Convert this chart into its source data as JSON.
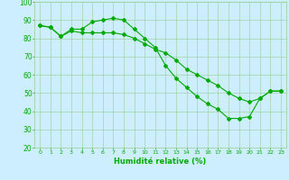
{
  "line1_x": [
    0,
    1,
    2,
    3,
    4,
    5,
    6,
    7,
    8,
    9,
    10,
    11,
    12,
    13,
    14,
    15,
    16,
    17,
    18,
    19,
    20,
    21,
    22,
    23
  ],
  "line1_y": [
    87,
    86,
    81,
    85,
    85,
    89,
    90,
    91,
    90,
    85,
    80,
    75,
    65,
    58,
    53,
    48,
    44,
    41,
    36,
    36,
    37,
    47,
    51,
    51
  ],
  "line2_x": [
    0,
    1,
    2,
    3,
    4,
    5,
    6,
    7,
    8,
    9,
    10,
    11,
    12,
    13,
    14,
    15,
    16,
    17,
    18,
    19,
    20,
    21,
    22,
    23
  ],
  "line2_y": [
    87,
    86,
    81,
    84,
    83,
    83,
    83,
    83,
    82,
    80,
    77,
    74,
    72,
    68,
    63,
    60,
    57,
    54,
    50,
    47,
    45,
    47,
    51,
    51
  ],
  "line_color": "#00aa00",
  "marker": "D",
  "marker_size": 2.0,
  "line_width": 0.8,
  "bg_color": "#cceeff",
  "grid_color": "#99cc99",
  "xlabel": "Humidité relative (%)",
  "xlabel_color": "#00aa00",
  "tick_color": "#00aa00",
  "xlim": [
    -0.5,
    23.5
  ],
  "ylim": [
    20,
    100
  ],
  "yticks": [
    20,
    30,
    40,
    50,
    60,
    70,
    80,
    90,
    100
  ],
  "xticks": [
    0,
    1,
    2,
    3,
    4,
    5,
    6,
    7,
    8,
    9,
    10,
    11,
    12,
    13,
    14,
    15,
    16,
    17,
    18,
    19,
    20,
    21,
    22,
    23
  ]
}
